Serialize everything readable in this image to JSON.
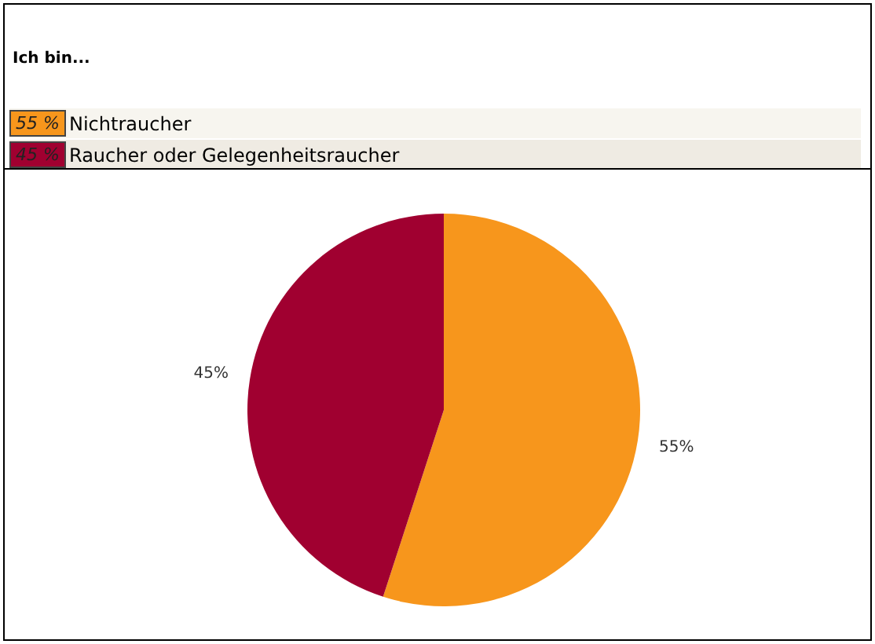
{
  "chart_data": {
    "type": "pie",
    "title": "Ich bin...",
    "categories": [
      "Nichtraucher",
      "Raucher oder Gelegenheitsraucher"
    ],
    "values": [
      55,
      45
    ],
    "colors": [
      "#f7961c",
      "#a00030"
    ],
    "value_labels": [
      "55%",
      "45%"
    ],
    "annotations": [
      "55 %",
      "45 %"
    ],
    "legend": "top left"
  }
}
